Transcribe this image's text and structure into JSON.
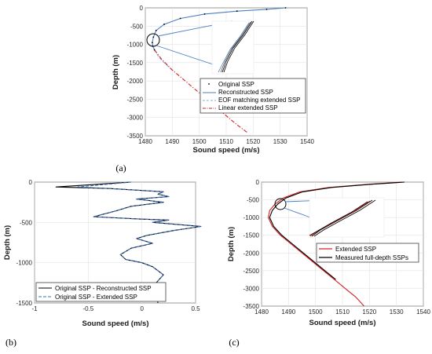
{
  "chart_data": [
    {
      "panel": "(a)",
      "type": "line",
      "xlabel": "Sound speed (m/s)",
      "ylabel": "Depth (m)",
      "xlim": [
        1480,
        1540
      ],
      "ylim": [
        0,
        3500
      ],
      "y_reversed": true,
      "xticks": [
        "1480",
        "1490",
        "1500",
        "1510",
        "1520",
        "1530",
        "1540"
      ],
      "yticks": [
        "0",
        "-500",
        "-1000",
        "-1500",
        "-2000",
        "-2500",
        "-3000",
        "-3500"
      ],
      "grid": true,
      "legend_placement": "bottom-right",
      "series": [
        {
          "name": "Original SSP",
          "style": "dots",
          "color": "#000000",
          "x": [
            1532,
            1525,
            1514,
            1502,
            1493,
            1487,
            1484,
            1483,
            1482.6,
            1482.8,
            1483.4
          ],
          "y": [
            0,
            40,
            90,
            170,
            290,
            450,
            620,
            800,
            950,
            1050,
            1150
          ]
        },
        {
          "name": "Reconstructed SSP",
          "style": "solid",
          "color": "#4a7fc1",
          "x": [
            1532,
            1525,
            1514,
            1502,
            1493,
            1487,
            1484,
            1483,
            1482.6,
            1482.8,
            1483.4
          ],
          "y": [
            0,
            40,
            90,
            170,
            290,
            450,
            620,
            800,
            950,
            1050,
            1150
          ]
        },
        {
          "name": "EOF matching extended SSP",
          "style": "dashed",
          "color": "#8fb2dc",
          "x": [
            1483.4,
            1485,
            1487,
            1490
          ],
          "y": [
            1150,
            1350,
            1500,
            1700
          ]
        },
        {
          "name": "Linear extended SSP",
          "style": "dashdot",
          "color": "#d62020",
          "x": [
            1483.4,
            1486,
            1490,
            1494,
            1498,
            1502,
            1506,
            1510,
            1514,
            1518
          ],
          "y": [
            1150,
            1400,
            1700,
            1950,
            2200,
            2450,
            2700,
            2950,
            3200,
            3420
          ]
        }
      ]
    },
    {
      "panel": "(b)",
      "type": "line",
      "xlabel": "Sound speed (m/s)",
      "ylabel": "Depth (m)",
      "xlim": [
        -1,
        0.5
      ],
      "ylim": [
        0,
        1500
      ],
      "y_reversed": true,
      "xticks": [
        "-1",
        "-0.5",
        "0",
        "0.5"
      ],
      "yticks": [
        "0",
        "-500",
        "-1000",
        "-1500"
      ],
      "grid": true,
      "legend_placement": "bottom-left",
      "series": [
        {
          "name": "Original SSP - Reconstructed SSP",
          "style": "solid",
          "color": "#000000",
          "x": [
            -0.1,
            -0.8,
            -0.3,
            0.2,
            0.15,
            0.25,
            -0.05,
            0.2,
            -0.1,
            -0.25,
            -0.45,
            0.0,
            0.25,
            0.1,
            0.55,
            0.3,
            0.05,
            -0.05,
            0.1,
            -0.1,
            -0.2,
            -0.15,
            0.0,
            0.1,
            0.2,
            0.1,
            0.15
          ],
          "y": [
            0,
            60,
            80,
            120,
            150,
            180,
            210,
            250,
            300,
            360,
            430,
            460,
            470,
            500,
            550,
            600,
            660,
            700,
            760,
            820,
            900,
            960,
            1000,
            1050,
            1150,
            1300,
            1500
          ]
        },
        {
          "name": "Original SSP - Extended SSP",
          "style": "dashed",
          "color": "#3f6fb5",
          "x": [
            -0.1,
            -0.6,
            -0.3,
            0.2,
            0.15,
            0.25,
            -0.05,
            0.2,
            -0.1,
            -0.25,
            -0.45,
            0.0,
            0.25,
            0.1,
            0.55,
            0.3,
            0.05,
            -0.05,
            0.1,
            -0.1,
            -0.2,
            -0.15,
            0.0,
            0.1,
            0.2,
            0.1,
            0.15
          ],
          "y": [
            0,
            60,
            80,
            120,
            150,
            180,
            210,
            250,
            300,
            360,
            430,
            460,
            470,
            500,
            550,
            600,
            660,
            700,
            760,
            820,
            900,
            960,
            1000,
            1050,
            1150,
            1300,
            1500
          ]
        }
      ]
    },
    {
      "panel": "(c)",
      "type": "line",
      "xlabel": "Sound speed (m/s)",
      "ylabel": "Depth (m)",
      "xlim": [
        1480,
        1540
      ],
      "ylim": [
        0,
        3500
      ],
      "y_reversed": true,
      "xticks": [
        "1480",
        "1490",
        "1500",
        "1510",
        "1520",
        "1530",
        "1540"
      ],
      "yticks": [
        "0",
        "-500",
        "-1000",
        "-1500",
        "-2000",
        "-2500",
        "-3000",
        "-3500"
      ],
      "grid": true,
      "legend_placement": "right",
      "series": [
        {
          "name": "Extended SSP",
          "style": "solid",
          "color": "#d62020",
          "x": [
            1532,
            1520,
            1505,
            1494,
            1488,
            1485,
            1483,
            1482.5,
            1484,
            1487,
            1491,
            1495,
            1499,
            1503,
            1507,
            1511,
            1515,
            1518
          ],
          "y": [
            0,
            60,
            150,
            280,
            450,
            620,
            800,
            1000,
            1250,
            1500,
            1750,
            2000,
            2250,
            2500,
            2750,
            3000,
            3250,
            3500
          ]
        },
        {
          "name": "Measured full-depth SSPs",
          "style": "solid",
          "color": "#000000",
          "x": [
            1533,
            1521,
            1506,
            1495,
            1489,
            1486,
            1484,
            1483,
            1484.5,
            1487.5,
            1491.5,
            1495.5,
            1499.5,
            1503.5,
            1507.5
          ],
          "y": [
            0,
            60,
            150,
            280,
            450,
            620,
            800,
            1000,
            1250,
            1500,
            1750,
            2000,
            2250,
            2500,
            2750
          ]
        }
      ]
    }
  ],
  "captions": {
    "a": "(a)",
    "b": "(b)",
    "c": "(c)"
  }
}
